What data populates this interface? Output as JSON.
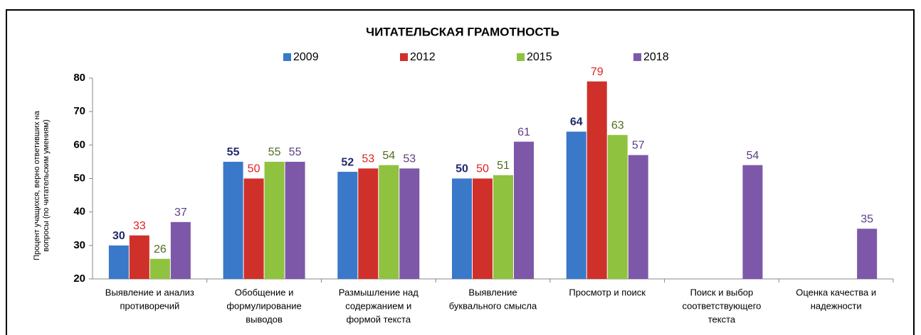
{
  "chart_data": {
    "type": "bar",
    "title": "ЧИТАТЕЛЬСКАЯ  ГРАМОТНОСТЬ",
    "ylabel": [
      "Процент учащихся, верно ответивших на",
      "вопросы (по читательским умениям)"
    ],
    "categories": [
      [
        "Выявление и анализ",
        "противоречий"
      ],
      [
        "Обобщение и",
        "формулирование",
        "выводов"
      ],
      [
        "Размышление над",
        "содержанием и",
        "формой текста"
      ],
      [
        "Выявление",
        "буквального смысла"
      ],
      [
        "Просмотр и поиск"
      ],
      [
        "Поиск и выбор",
        "соответствующего",
        "текста"
      ],
      [
        "Оценка качества и",
        "надежности"
      ]
    ],
    "series": [
      {
        "name": "2009",
        "color": "#3a78c9",
        "label_color": "#1f2a6b",
        "values": [
          30,
          55,
          52,
          50,
          64,
          null,
          null
        ]
      },
      {
        "name": "2012",
        "color": "#d0302a",
        "label_color": "#e02020",
        "values": [
          33,
          50,
          53,
          50,
          79,
          null,
          null
        ]
      },
      {
        "name": "2015",
        "color": "#8fc23f",
        "label_color": "#4f6b1f",
        "values": [
          26,
          55,
          54,
          51,
          63,
          null,
          null
        ]
      },
      {
        "name": "2018",
        "color": "#7d58a8",
        "label_color": "#5a3f80",
        "values": [
          37,
          55,
          53,
          61,
          57,
          54,
          35
        ]
      }
    ],
    "ylim": [
      20,
      80
    ],
    "yticks": [
      20,
      30,
      40,
      50,
      60,
      70,
      80
    ],
    "grid": false,
    "legend": "top"
  }
}
